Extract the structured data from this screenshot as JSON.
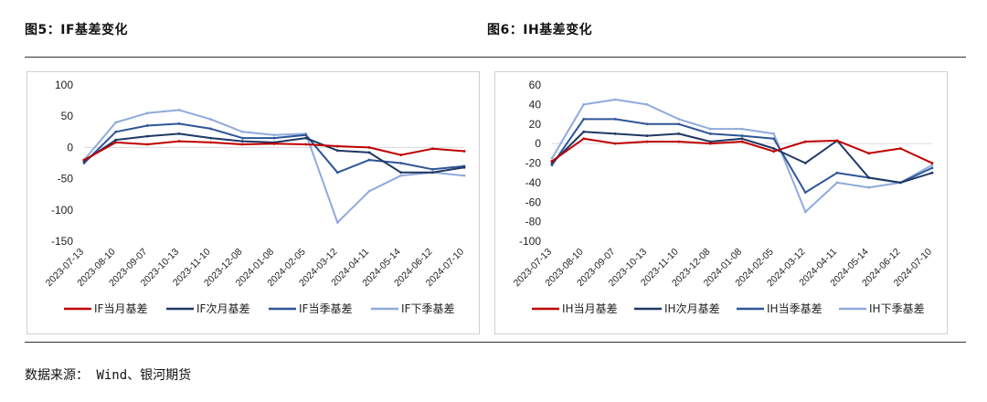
{
  "figures": {
    "left_title": "图5：IF基差变化",
    "right_title": "图6：IH基差变化"
  },
  "footer": {
    "source_label": "数据来源：",
    "source_value": "Wind、银河期货"
  },
  "chart_data": [
    {
      "type": "line",
      "title": "图5：IF基差变化",
      "xlabel": "",
      "ylabel": "",
      "ylim": [
        -150,
        100
      ],
      "yticks": [
        100,
        50,
        0,
        -50,
        -100,
        -150
      ],
      "x_tick_labels": [
        "2023-07-13",
        "2023-08-10",
        "2023-09-07",
        "2023-10-13",
        "2023-11-10",
        "2023-12-08",
        "2024-01-08",
        "2024-02-05",
        "2024-03-12",
        "2024-04-11",
        "2024-05-14",
        "2024-06-12",
        "2024-07-10"
      ],
      "legend_position": "bottom",
      "grid": false,
      "series": [
        {
          "name": "IF当月基差",
          "color": "#c00000",
          "values": [
            -20,
            8,
            5,
            10,
            8,
            5,
            6,
            5,
            2,
            0,
            -12,
            -2,
            -6
          ]
        },
        {
          "name": "IF次月基差",
          "color": "#1f3864",
          "values": [
            -22,
            12,
            18,
            22,
            15,
            10,
            8,
            15,
            -5,
            -8,
            -40,
            -40,
            -32
          ]
        },
        {
          "name": "IF当季基差",
          "color": "#2f5597",
          "values": [
            -25,
            25,
            35,
            38,
            30,
            15,
            15,
            20,
            -40,
            -20,
            -25,
            -35,
            -30
          ]
        },
        {
          "name": "IF下季基差",
          "color": "#8faadc",
          "values": [
            -20,
            40,
            55,
            60,
            45,
            25,
            20,
            22,
            -120,
            -70,
            -45,
            -40,
            -45
          ]
        }
      ]
    },
    {
      "type": "line",
      "title": "图6：IH基差变化",
      "xlabel": "",
      "ylabel": "",
      "ylim": [
        -100,
        60
      ],
      "yticks": [
        60,
        40,
        20,
        0,
        -20,
        -40,
        -60,
        -80,
        -100
      ],
      "x_tick_labels": [
        "2023-07-13",
        "2023-08-10",
        "2023-09-07",
        "2023-10-13",
        "2023-11-10",
        "2023-12-08",
        "2024-01-08",
        "2024-02-05",
        "2024-03-12",
        "2024-04-11",
        "2024-05-14",
        "2024-06-12",
        "2024-07-10"
      ],
      "legend_position": "bottom",
      "grid": false,
      "series": [
        {
          "name": "IH当月基差",
          "color": "#c00000",
          "values": [
            -18,
            5,
            0,
            2,
            2,
            0,
            2,
            -8,
            2,
            3,
            -10,
            -5,
            -20
          ]
        },
        {
          "name": "IH次月基差",
          "color": "#1f3864",
          "values": [
            -20,
            12,
            10,
            8,
            10,
            2,
            5,
            -5,
            -20,
            3,
            -35,
            -40,
            -30
          ]
        },
        {
          "name": "IH当季基差",
          "color": "#2f5597",
          "values": [
            -22,
            25,
            25,
            20,
            20,
            10,
            8,
            5,
            -50,
            -30,
            -35,
            -40,
            -25
          ]
        },
        {
          "name": "IH下季基差",
          "color": "#8faadc",
          "values": [
            -15,
            40,
            45,
            40,
            25,
            15,
            15,
            10,
            -70,
            -40,
            -45,
            -40,
            -22
          ]
        }
      ]
    }
  ]
}
